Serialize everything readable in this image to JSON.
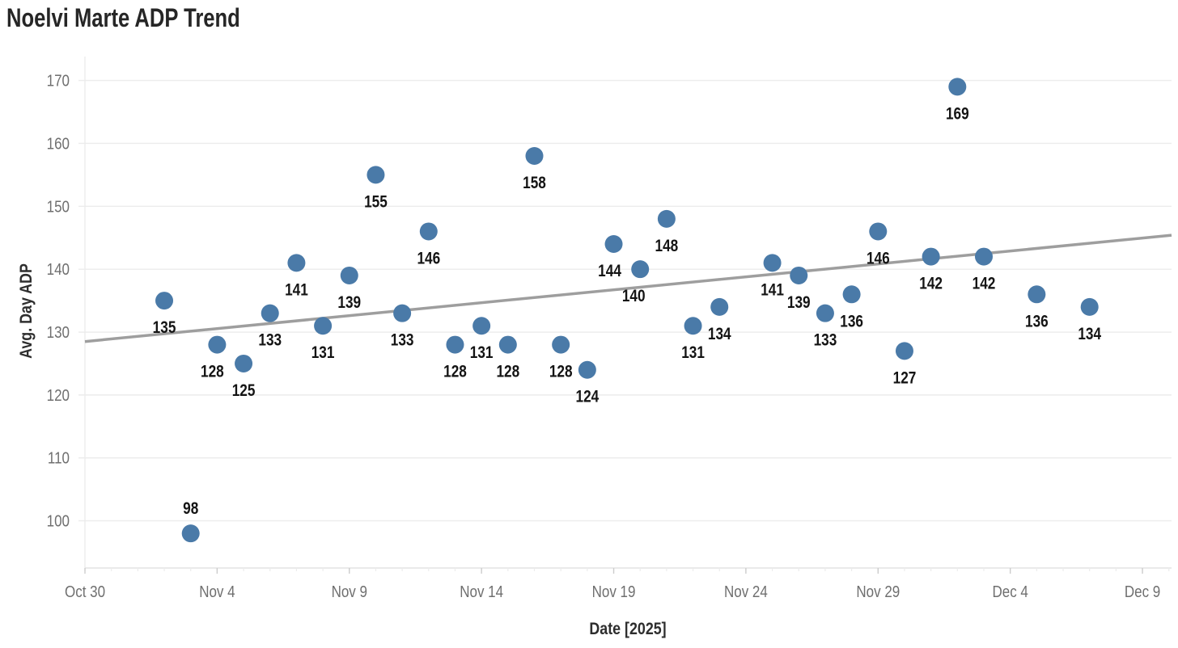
{
  "page": {
    "title": "Noelvi Marte ADP Trend"
  },
  "chart_data": {
    "type": "scatter",
    "title": "Noelvi Marte ADP Trend",
    "xlabel": "Date [2025]",
    "ylabel": "Avg. Day ADP",
    "legend": false,
    "grid": true,
    "x_axis": {
      "day0_date": "Oct 30",
      "tick_labels": [
        "Oct 30",
        "Nov 4",
        "Nov 9",
        "Nov 14",
        "Nov 19",
        "Nov 24",
        "Nov 29",
        "Dec 4",
        "Dec 9"
      ],
      "tick_days": [
        0,
        5,
        10,
        15,
        20,
        25,
        30,
        35,
        40
      ],
      "minor_tick_days_range": [
        0,
        41
      ],
      "view_range_days": [
        0,
        41.1
      ]
    },
    "y_axis": {
      "tick_values": [
        100,
        110,
        120,
        130,
        140,
        150,
        160,
        170
      ],
      "view_range": [
        92.5,
        173.8
      ]
    },
    "points": [
      {
        "date": "Nov 2",
        "day": 3,
        "adp": 135,
        "label": "135"
      },
      {
        "date": "Nov 3",
        "day": 4,
        "adp": 98,
        "label": "98",
        "label_pos": "above"
      },
      {
        "date": "Nov 4",
        "day": 5,
        "adp": 128,
        "label": "128",
        "label_dx": -6
      },
      {
        "date": "Nov 5",
        "day": 6,
        "adp": 125,
        "label": "125"
      },
      {
        "date": "Nov 6",
        "day": 7,
        "adp": 133,
        "label": "133"
      },
      {
        "date": "Nov 7",
        "day": 8,
        "adp": 141,
        "label": "141"
      },
      {
        "date": "Nov 8",
        "day": 9,
        "adp": 131,
        "label": "131"
      },
      {
        "date": "Nov 9",
        "day": 10,
        "adp": 139,
        "label": "139"
      },
      {
        "date": "Nov 10",
        "day": 11,
        "adp": 155,
        "label": "155"
      },
      {
        "date": "Nov 11",
        "day": 12,
        "adp": 133,
        "label": "133"
      },
      {
        "date": "Nov 12",
        "day": 13,
        "adp": 146,
        "label": "146"
      },
      {
        "date": "Nov 13",
        "day": 14,
        "adp": 128,
        "label": "128"
      },
      {
        "date": "Nov 14",
        "day": 15,
        "adp": 131,
        "label": "131"
      },
      {
        "date": "Nov 15",
        "day": 16,
        "adp": 128,
        "label": "128"
      },
      {
        "date": "Nov 16",
        "day": 17,
        "adp": 158,
        "label": "158"
      },
      {
        "date": "Nov 17",
        "day": 18,
        "adp": 128,
        "label": "128"
      },
      {
        "date": "Nov 18",
        "day": 19,
        "adp": 124,
        "label": "124"
      },
      {
        "date": "Nov 19",
        "day": 20,
        "adp": 144,
        "label": "144",
        "label_dx": -5
      },
      {
        "date": "Nov 20",
        "day": 21,
        "adp": 140,
        "label": "140",
        "label_dx": -8
      },
      {
        "date": "Nov 21",
        "day": 22,
        "adp": 148,
        "label": "148"
      },
      {
        "date": "Nov 22",
        "day": 23,
        "adp": 131,
        "label": "131"
      },
      {
        "date": "Nov 23",
        "day": 24,
        "adp": 134,
        "label": "134"
      },
      {
        "date": "Nov 25",
        "day": 26,
        "adp": 141,
        "label": "141"
      },
      {
        "date": "Nov 26",
        "day": 27,
        "adp": 139,
        "label": "139"
      },
      {
        "date": "Nov 27",
        "day": 28,
        "adp": 133,
        "label": "133"
      },
      {
        "date": "Nov 28",
        "day": 29,
        "adp": 136,
        "label": "136"
      },
      {
        "date": "Nov 29",
        "day": 30,
        "adp": 146,
        "label": "146"
      },
      {
        "date": "Nov 30",
        "day": 31,
        "adp": 127,
        "label": "127"
      },
      {
        "date": "Dec 1",
        "day": 32,
        "adp": 142,
        "label": "142"
      },
      {
        "date": "Dec 2",
        "day": 33,
        "adp": 169,
        "label": "169"
      },
      {
        "date": "Dec 3",
        "day": 34,
        "adp": 142,
        "label": "142"
      },
      {
        "date": "Dec 5",
        "day": 36,
        "adp": 136,
        "label": "136"
      },
      {
        "date": "Dec 7",
        "day": 38,
        "adp": 134,
        "label": "134"
      }
    ],
    "trend_line": {
      "start_day": 0,
      "start_adp": 128.5,
      "end_day": 41.1,
      "end_adp": 145.4
    },
    "colors": {
      "dot": "#4a7aa8",
      "trend_line": "#9e9e9e",
      "grid_line": "#ececec",
      "axis_line": "#e3e3e3",
      "tick_mark": "#cccccc",
      "tick_text": "#6f6f6f",
      "point_label_text": "#141414",
      "title_text": "#262626",
      "axis_title_text": "#2e2e2e",
      "background": "#ffffff"
    }
  }
}
